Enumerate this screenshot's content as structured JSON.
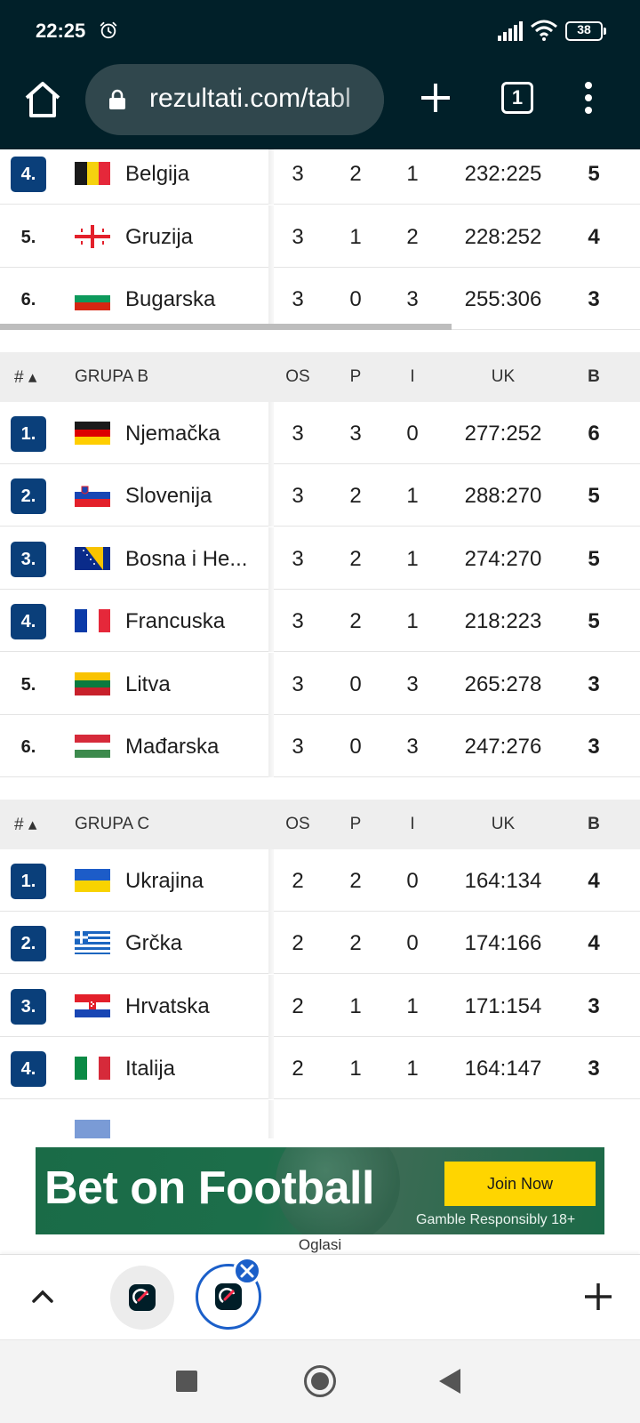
{
  "status_bar": {
    "time": "22:25",
    "battery": "38"
  },
  "browser": {
    "url": "rezultati.com/tabl",
    "tab_count": "1"
  },
  "groups": [
    {
      "id": "a_tail",
      "rows": [
        {
          "rank": "4.",
          "qualified": true,
          "team": "Belgija",
          "flag": "be",
          "os": "3",
          "p": "2",
          "i": "1",
          "uk": "232:225",
          "b": "5"
        },
        {
          "rank": "5.",
          "qualified": false,
          "team": "Gruzija",
          "flag": "ge",
          "os": "3",
          "p": "1",
          "i": "2",
          "uk": "228:252",
          "b": "4"
        },
        {
          "rank": "6.",
          "qualified": false,
          "team": "Bugarska",
          "flag": "bg",
          "os": "3",
          "p": "0",
          "i": "3",
          "uk": "255:306",
          "b": "3"
        }
      ]
    },
    {
      "id": "b",
      "header": {
        "hash": "# ▴",
        "name": "GRUPA B",
        "os": "OS",
        "p": "P",
        "i": "I",
        "uk": "UK",
        "b": "B"
      },
      "rows": [
        {
          "rank": "1.",
          "qualified": true,
          "team": "Njemačka",
          "flag": "de",
          "os": "3",
          "p": "3",
          "i": "0",
          "uk": "277:252",
          "b": "6"
        },
        {
          "rank": "2.",
          "qualified": true,
          "team": "Slovenija",
          "flag": "si",
          "os": "3",
          "p": "2",
          "i": "1",
          "uk": "288:270",
          "b": "5"
        },
        {
          "rank": "3.",
          "qualified": true,
          "team": "Bosna i He...",
          "flag": "ba",
          "os": "3",
          "p": "2",
          "i": "1",
          "uk": "274:270",
          "b": "5"
        },
        {
          "rank": "4.",
          "qualified": true,
          "team": "Francuska",
          "flag": "fr",
          "os": "3",
          "p": "2",
          "i": "1",
          "uk": "218:223",
          "b": "5"
        },
        {
          "rank": "5.",
          "qualified": false,
          "team": "Litva",
          "flag": "lt",
          "os": "3",
          "p": "0",
          "i": "3",
          "uk": "265:278",
          "b": "3"
        },
        {
          "rank": "6.",
          "qualified": false,
          "team": "Mađarska",
          "flag": "hu",
          "os": "3",
          "p": "0",
          "i": "3",
          "uk": "247:276",
          "b": "3"
        }
      ]
    },
    {
      "id": "c",
      "header": {
        "hash": "# ▴",
        "name": "GRUPA C",
        "os": "OS",
        "p": "P",
        "i": "I",
        "uk": "UK",
        "b": "B"
      },
      "rows": [
        {
          "rank": "1.",
          "qualified": true,
          "team": "Ukrajina",
          "flag": "ua",
          "os": "2",
          "p": "2",
          "i": "0",
          "uk": "164:134",
          "b": "4"
        },
        {
          "rank": "2.",
          "qualified": true,
          "team": "Grčka",
          "flag": "gr",
          "os": "2",
          "p": "2",
          "i": "0",
          "uk": "174:166",
          "b": "4"
        },
        {
          "rank": "3.",
          "qualified": true,
          "team": "Hrvatska",
          "flag": "hr",
          "os": "2",
          "p": "1",
          "i": "1",
          "uk": "171:154",
          "b": "3"
        },
        {
          "rank": "4.",
          "qualified": true,
          "team": "Italija",
          "flag": "it",
          "os": "2",
          "p": "1",
          "i": "1",
          "uk": "164:147",
          "b": "3"
        }
      ]
    }
  ],
  "ad": {
    "headline": "Bet on Football",
    "cta": "Join Now",
    "disclaimer": "Gamble Responsibly  18+",
    "label": "Oglasi"
  },
  "colors": {
    "chrome_bg": "#012029",
    "qualified_badge": "#0a3f7a",
    "ad_green": "#1a6b47",
    "cta_yellow": "#ffd500",
    "active_tab_ring": "#1b5fc9"
  }
}
